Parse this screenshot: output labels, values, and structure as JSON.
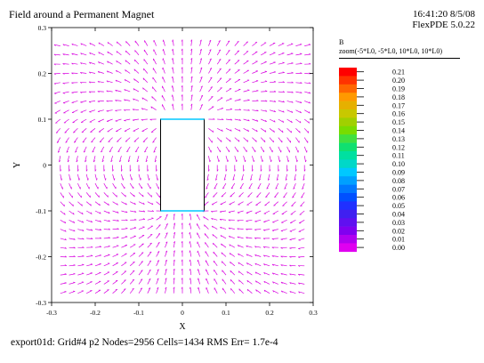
{
  "header": {
    "title": "Field around a Permanent Magnet",
    "timestamp": "16:41:20 8/5/08",
    "software": "FlexPDE 5.0.22"
  },
  "footer": {
    "status": "export01d:  Grid#4  p2  Nodes=2956 Cells=1434 RMS Err= 1.7e-4"
  },
  "legend": {
    "variable": "B",
    "zoom": "zoom(-5*L0, -5*L0, 10*L0, 10*L0)",
    "levels": [
      "0.21",
      "0.20",
      "0.19",
      "0.18",
      "0.17",
      "0.16",
      "0.15",
      "0.14",
      "0.13",
      "0.12",
      "0.11",
      "0.10",
      "0.09",
      "0.08",
      "0.07",
      "0.06",
      "0.05",
      "0.04",
      "0.03",
      "0.02",
      "0.01",
      "0.00"
    ],
    "colors": [
      "#ff0000",
      "#ff3300",
      "#ff6600",
      "#ff9900",
      "#e6b000",
      "#c8c800",
      "#a0d000",
      "#78dc00",
      "#40e040",
      "#10e070",
      "#00e0a0",
      "#00d8c8",
      "#00c8ff",
      "#00a0ff",
      "#0078ff",
      "#0050ff",
      "#2030ff",
      "#4020f0",
      "#6010f0",
      "#8000f0",
      "#b000f0",
      "#e000f0"
    ]
  },
  "chart_data": {
    "type": "vector-field",
    "title": "Field around a Permanent Magnet",
    "xlabel": "X",
    "ylabel": "Y",
    "xlim": [
      -0.3,
      0.3
    ],
    "ylim": [
      -0.3,
      0.3
    ],
    "xticks": [
      "-0.3",
      "-0.2",
      "-0.1",
      "0",
      "0.1",
      "0.2",
      "0.3"
    ],
    "yticks": [
      "-0.3",
      "-0.2",
      "-0.1",
      "0",
      "0.1",
      "0.2",
      "0.3"
    ],
    "magnet": {
      "x": [
        -0.05,
        0.05
      ],
      "y": [
        -0.1,
        0.1
      ]
    },
    "field_domain": {
      "x": [
        -0.28,
        0.29
      ],
      "y": [
        -0.28,
        0.26
      ]
    },
    "grid_step": 0.02,
    "arrow_color": "#d800e0",
    "magnet_edge_color": "#00c8ff"
  }
}
